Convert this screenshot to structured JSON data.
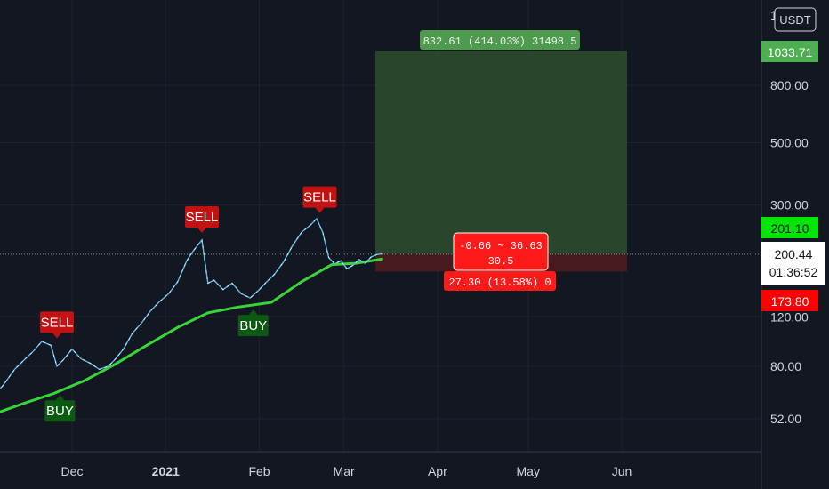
{
  "chart_data": {
    "type": "candlestick",
    "currency": "USDT",
    "x_labels": [
      "Dec",
      "2021",
      "Feb",
      "Mar",
      "Apr",
      "May",
      "Jun"
    ],
    "y_ticks": [
      "800.00",
      "500.00",
      "300.00",
      "120.00",
      "80.00",
      "52.00"
    ],
    "y_scale": "log",
    "y_top_partial": "1",
    "price_tags": {
      "target": {
        "label": "1033.71",
        "value": 1033.71,
        "color": "#4caf50"
      },
      "entry": {
        "label": "201.10",
        "value": 201.1,
        "color": "#00e600"
      },
      "current": {
        "label": "200.44",
        "value": 200.44,
        "countdown": "01:36:52",
        "color": "#ffffff"
      },
      "stop": {
        "label": "173.80",
        "value": 173.8,
        "color": "#ff0000"
      }
    },
    "position_tool": {
      "profit_label": "832.61 (414.03%) 31498.5",
      "center_line1": "-0.66 ~ 36.63",
      "center_line2": "30.5",
      "loss_label": "27.30 (13.58%) 0",
      "entry": 201.1,
      "target": 1033.71,
      "stop": 173.8
    },
    "signals": [
      {
        "type": "SELL",
        "date": "2020-11-26",
        "price": 95
      },
      {
        "type": "BUY",
        "date": "2020-11-27",
        "price": 67
      },
      {
        "type": "SELL",
        "date": "2021-01-13",
        "price": 225
      },
      {
        "type": "BUY",
        "date": "2021-01-30",
        "price": 135
      },
      {
        "type": "SELL",
        "date": "2021-02-21",
        "price": 265
      }
    ],
    "price_series": [
      [
        "2020-10-25",
        55
      ],
      [
        "2020-10-28",
        60
      ],
      [
        "2020-11-01",
        57
      ],
      [
        "2020-11-04",
        62
      ],
      [
        "2020-11-08",
        68
      ],
      [
        "2020-11-12",
        78
      ],
      [
        "2020-11-15",
        84
      ],
      [
        "2020-11-18",
        90
      ],
      [
        "2020-11-21",
        98
      ],
      [
        "2020-11-24",
        95
      ],
      [
        "2020-11-26",
        80
      ],
      [
        "2020-11-28",
        84
      ],
      [
        "2020-12-01",
        92
      ],
      [
        "2020-12-04",
        85
      ],
      [
        "2020-12-07",
        82
      ],
      [
        "2020-12-10",
        78
      ],
      [
        "2020-12-13",
        80
      ],
      [
        "2020-12-15",
        84
      ],
      [
        "2020-12-18",
        92
      ],
      [
        "2020-12-21",
        105
      ],
      [
        "2020-12-24",
        114
      ],
      [
        "2020-12-27",
        126
      ],
      [
        "2020-12-30",
        136
      ],
      [
        "2021-01-02",
        145
      ],
      [
        "2021-01-05",
        160
      ],
      [
        "2021-01-08",
        190
      ],
      [
        "2021-01-10",
        205
      ],
      [
        "2021-01-13",
        225
      ],
      [
        "2021-01-15",
        158
      ],
      [
        "2021-01-17",
        162
      ],
      [
        "2021-01-20",
        150
      ],
      [
        "2021-01-23",
        158
      ],
      [
        "2021-01-26",
        145
      ],
      [
        "2021-01-29",
        140
      ],
      [
        "2021-02-01",
        150
      ],
      [
        "2021-02-03",
        158
      ],
      [
        "2021-02-06",
        170
      ],
      [
        "2021-02-09",
        188
      ],
      [
        "2021-02-12",
        215
      ],
      [
        "2021-02-15",
        240
      ],
      [
        "2021-02-18",
        255
      ],
      [
        "2021-02-20",
        268
      ],
      [
        "2021-02-22",
        240
      ],
      [
        "2021-02-24",
        195
      ],
      [
        "2021-02-26",
        185
      ],
      [
        "2021-02-28",
        190
      ],
      [
        "2021-03-02",
        178
      ],
      [
        "2021-03-04",
        183
      ],
      [
        "2021-03-06",
        192
      ],
      [
        "2021-03-08",
        186
      ],
      [
        "2021-03-10",
        196
      ],
      [
        "2021-03-12",
        200
      ],
      [
        "2021-03-14",
        201
      ]
    ],
    "ma_series": [
      [
        "2020-10-25",
        50
      ],
      [
        "2020-11-05",
        54
      ],
      [
        "2020-11-15",
        59
      ],
      [
        "2020-11-25",
        64
      ],
      [
        "2020-12-05",
        71
      ],
      [
        "2020-12-15",
        81
      ],
      [
        "2020-12-25",
        94
      ],
      [
        "2021-01-05",
        110
      ],
      [
        "2021-01-15",
        124
      ],
      [
        "2021-01-25",
        130
      ],
      [
        "2021-02-05",
        135
      ],
      [
        "2021-02-15",
        160
      ],
      [
        "2021-02-25",
        184
      ],
      [
        "2021-03-05",
        186
      ],
      [
        "2021-03-14",
        193
      ]
    ]
  },
  "colors": {
    "background": "#131722",
    "grid": "#1e222d",
    "ma_line": "#39d439",
    "price_up": "#ffffff",
    "price_down": "#5ab8e6",
    "sell": "#c21212",
    "buy": "#0c5a12",
    "profit_zone": "#2c4a2c",
    "loss_zone": "#4a1a1f"
  }
}
